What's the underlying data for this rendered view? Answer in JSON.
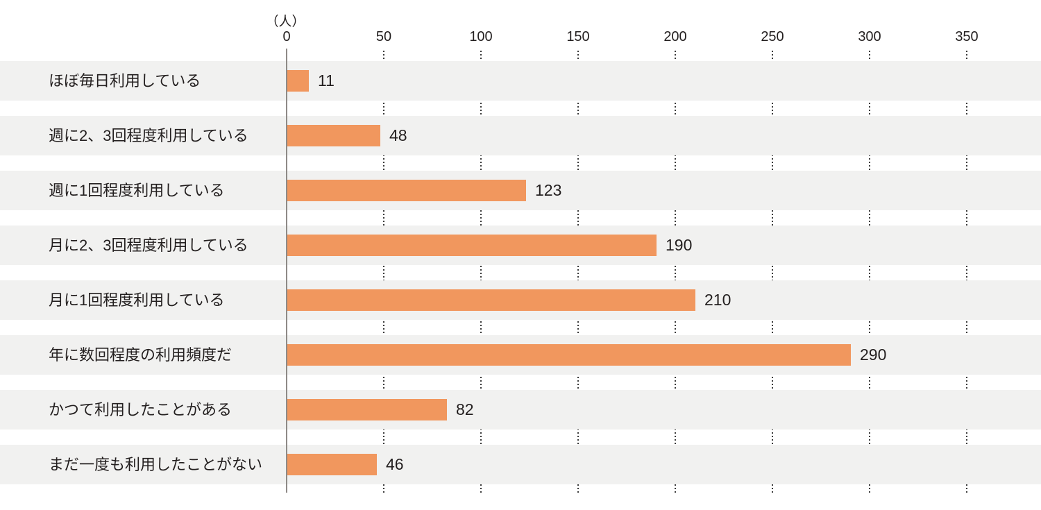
{
  "chart_data": {
    "type": "bar",
    "orientation": "horizontal",
    "unit_label": "（人）",
    "categories": [
      "ほぼ毎日利用している",
      "週に2、3回程度利用している",
      "週に1回程度利用している",
      "月に2、3回程度利用している",
      "月に1回程度利用している",
      "年に数回程度の利用頻度だ",
      "かつて利用したことがある",
      "まだ一度も利用したことがない"
    ],
    "values": [
      11,
      48,
      123,
      190,
      210,
      290,
      82,
      46
    ],
    "x_ticks": [
      0,
      50,
      100,
      150,
      200,
      250,
      300,
      350
    ],
    "xlim": [
      0,
      350
    ],
    "grid": "dotted-vertical-in-row-gaps",
    "legend": "none",
    "title": "",
    "colors": {
      "bar": "#F1975E",
      "row_stripe": "#F1F1F0",
      "background": "#FFFFFF",
      "axis_line": "#8E8A87",
      "grid_dot": "#3A3A3A",
      "text": "#231F1F"
    }
  }
}
